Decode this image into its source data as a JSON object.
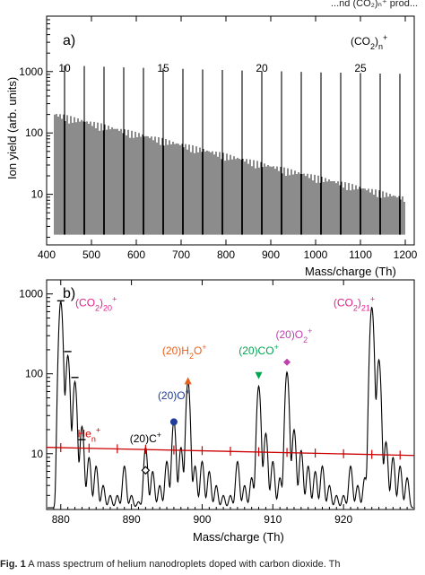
{
  "page_fragments": {
    "top_right": "...nd (CO₂)ₙ⁺ prod...",
    "caption_label": "Fig. 1",
    "caption_text": "A mass spectrum of helium nanodroplets doped with carbon dioxide. Th"
  },
  "colors": {
    "trace": "#000000",
    "he_line": "#cc0000",
    "annot_cluster": "#e0218a",
    "annot_h2o": "#e8601c",
    "annot_co": "#00a651",
    "annot_o2": "#c03fb0",
    "annot_o": "#1f3c99"
  },
  "chart_data": [
    {
      "panel": "a)",
      "type": "line",
      "title": "(CO2)n+",
      "xlabel": "Mass/charge (Th)",
      "ylabel": "Ion yield (arb. units)",
      "xlim": [
        400,
        1220
      ],
      "ylim": [
        1.5,
        8000
      ],
      "yscale": "log",
      "x_ticks": [
        "400",
        "500",
        "600",
        "700",
        "800",
        "900",
        "1000",
        "1100",
        "1200"
      ],
      "y_ticks": [
        "10",
        "100",
        "1000"
      ],
      "cluster_size_labels": [
        {
          "n": "10",
          "x": 440
        },
        {
          "n": "15",
          "x": 660
        },
        {
          "n": "20",
          "x": 880
        },
        {
          "n": "25",
          "x": 1100
        }
      ],
      "dense_series": {
        "description_free": true,
        "x_start": 418,
        "x_end": 1200,
        "spacing": 4,
        "y_at_start": 190,
        "y_at_end": 8
      },
      "cluster_peaks": {
        "name": "(CO2)n+",
        "x": [
          440,
          484,
          528,
          572,
          616,
          660,
          704,
          748,
          792,
          836,
          880,
          924,
          968,
          1012,
          1056,
          1100,
          1144,
          1188
        ],
        "y": [
          1250,
          1230,
          1200,
          1170,
          1150,
          1130,
          1110,
          1080,
          1060,
          1040,
          1020,
          1010,
          990,
          970,
          960,
          950,
          930,
          920
        ]
      }
    },
    {
      "panel": "b)",
      "type": "line",
      "xlabel": "Mass/charge (Th)",
      "ylabel": "",
      "xlim": [
        878,
        930
      ],
      "ylim": [
        2,
        1500
      ],
      "yscale": "log",
      "x_ticks": [
        "880",
        "890",
        "900",
        "910",
        "920"
      ],
      "y_ticks": [
        "10",
        "100",
        "1000"
      ],
      "series_main": {
        "peaks_x": [
          880,
          881,
          882,
          883,
          884,
          885,
          886,
          887,
          888,
          889,
          890,
          891,
          892,
          893,
          894,
          895,
          896,
          897,
          898,
          899,
          900,
          901,
          902,
          903,
          904,
          905,
          906,
          907,
          908,
          909,
          910,
          911,
          912,
          913,
          914,
          915,
          916,
          917,
          918,
          919,
          920,
          921,
          922,
          923,
          924,
          925,
          926,
          927,
          928,
          929
        ],
        "peaks_y": [
          800,
          170,
          80,
          22,
          9,
          7,
          4,
          3,
          3,
          7,
          3,
          2.5,
          12,
          6,
          4,
          8,
          26,
          12,
          80,
          7,
          8,
          6,
          4,
          3,
          3,
          8,
          4,
          5,
          70,
          18,
          8,
          5,
          105,
          20,
          11,
          7,
          6,
          7,
          4,
          3,
          3,
          7,
          4,
          5,
          680,
          150,
          14,
          9,
          7,
          5
        ],
        "baseline": 2.1
      },
      "he_series": {
        "name": "Hen+",
        "fit_at_xmin": 12,
        "fit_at_xmax": 9.5,
        "tick_x": [
          880,
          884,
          888,
          892,
          896,
          900,
          904,
          908,
          912,
          916,
          920,
          924,
          928
        ]
      },
      "cluster_bars": {
        "x": [
          880,
          881,
          882,
          883
        ],
        "y": [
          820,
          190,
          90,
          15
        ]
      },
      "annotations": [
        {
          "label_main": "(CO",
          "sub": "2",
          "tail_main": ")",
          "tail_sub": "20",
          "sup": "+",
          "color_key": "annot_cluster",
          "x": 885,
          "y": 700
        },
        {
          "label_main": "(CO",
          "sub": "2",
          "tail_main": ")",
          "tail_sub": "21",
          "sup": "+",
          "color_key": "annot_cluster",
          "x": 921.5,
          "y": 700
        },
        {
          "label_main": "(20)H",
          "sub": "2",
          "tail_main": "O",
          "tail_sub": "",
          "sup": "+",
          "color_key": "annot_h2o",
          "x": 897.5,
          "y": 175,
          "marker": "triangle-up",
          "marker_x": 898,
          "marker_y": 82
        },
        {
          "label_main": "(20)CO",
          "sub": "",
          "tail_main": "",
          "tail_sub": "",
          "sup": "+",
          "color_key": "annot_co",
          "x": 908,
          "y": 175,
          "marker": "triangle-down",
          "marker_x": 908,
          "marker_y": 95
        },
        {
          "label_main": "(20)O",
          "sub": "2",
          "tail_main": "",
          "tail_sub": "",
          "sup": "+",
          "color_key": "annot_o2",
          "x": 913,
          "y": 280,
          "marker": "diamond",
          "marker_x": 912,
          "marker_y": 140
        },
        {
          "label_main": "(20)O",
          "sub": "",
          "tail_main": "",
          "tail_sub": "",
          "sup": "+",
          "color_key": "annot_o",
          "x": 896,
          "y": 48,
          "marker": "circle",
          "marker_x": 896,
          "marker_y": 25
        },
        {
          "label_main": "(20)C",
          "sub": "",
          "tail_main": "",
          "tail_sub": "",
          "sup": "+",
          "color_key": "trace",
          "x": 892,
          "y": 14,
          "marker": "diamond-open",
          "marker_x": 892,
          "marker_y": 6.2
        },
        {
          "label_main": "He",
          "sub": "n",
          "tail_main": "",
          "tail_sub": "",
          "sup": "+",
          "color_key": "he_line",
          "x": 884,
          "y": 16
        }
      ]
    }
  ]
}
